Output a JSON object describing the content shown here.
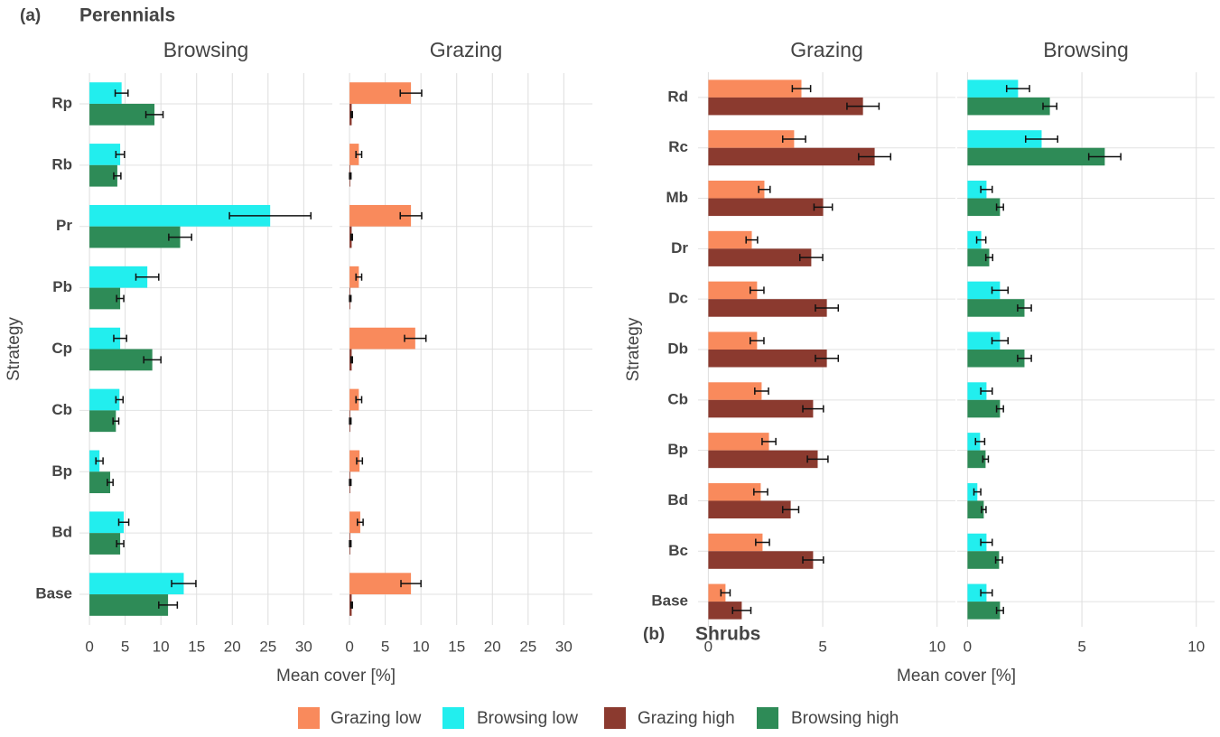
{
  "chart_data": [
    {
      "type": "hbar",
      "panel_label": "(a)",
      "panel_title": "Perennials",
      "title": "Browsing",
      "xlabel": "Mean cover [%]",
      "ylabel": "Strategy",
      "categories": [
        "Rp",
        "Rb",
        "Pr",
        "Pb",
        "Cp",
        "Cb",
        "Bp",
        "Bd",
        "Base"
      ],
      "series": [
        {
          "name": "Browsing low",
          "color": "#22eeee",
          "values": [
            4.5,
            4.3,
            25.3,
            8.1,
            4.3,
            4.2,
            1.4,
            4.8,
            13.2
          ],
          "errors": [
            0.9,
            0.6,
            5.7,
            1.6,
            0.9,
            0.5,
            0.5,
            0.7,
            1.7
          ]
        },
        {
          "name": "Browsing high",
          "color": "#2e8b57",
          "values": [
            9.1,
            3.9,
            12.7,
            4.3,
            8.8,
            3.7,
            2.9,
            4.3,
            11.0
          ],
          "errors": [
            1.2,
            0.5,
            1.6,
            0.5,
            1.2,
            0.4,
            0.4,
            0.5,
            1.3
          ]
        }
      ],
      "xlim": [
        -1.4,
        34
      ],
      "xticks": [
        0,
        5,
        10,
        15,
        20,
        25,
        30
      ],
      "grid": true
    },
    {
      "type": "hbar",
      "title": "Grazing",
      "categories": [
        "Rp",
        "Rb",
        "Pr",
        "Pb",
        "Cp",
        "Cb",
        "Bp",
        "Bd",
        "Base"
      ],
      "series": [
        {
          "name": "Grazing low",
          "color": "#f98a5c",
          "values": [
            8.6,
            1.3,
            8.6,
            1.3,
            9.2,
            1.3,
            1.4,
            1.5,
            8.6
          ],
          "errors": [
            1.5,
            0.4,
            1.5,
            0.4,
            1.5,
            0.4,
            0.4,
            0.4,
            1.4
          ]
        },
        {
          "name": "Grazing high",
          "color": "#8b3a2f",
          "values": [
            0.3,
            0.1,
            0.3,
            0.1,
            0.3,
            0.1,
            0.1,
            0.1,
            0.3
          ],
          "errors": [
            0.1,
            0.1,
            0.1,
            0.1,
            0.1,
            0.1,
            0.1,
            0.1,
            0.1
          ]
        }
      ],
      "xlim": [
        -1.4,
        34
      ],
      "xticks": [
        0,
        5,
        10,
        15,
        20,
        25,
        30
      ],
      "grid": true
    },
    {
      "type": "hbar",
      "panel_label": "(b)",
      "panel_title": "Shrubs",
      "title": "Grazing",
      "xlabel": "Mean cover [%]",
      "ylabel": "Strategy",
      "categories": [
        "Rd",
        "Rc",
        "Mb",
        "Dr",
        "Dc",
        "Db",
        "Cb",
        "Bp",
        "Bd",
        "Bc",
        "Base"
      ],
      "series": [
        {
          "name": "Grazing low",
          "color": "#f98a5c",
          "values": [
            4.07,
            3.75,
            2.45,
            1.9,
            2.13,
            2.13,
            2.33,
            2.65,
            2.29,
            2.37,
            0.75
          ],
          "errors": [
            0.4,
            0.5,
            0.25,
            0.25,
            0.3,
            0.3,
            0.3,
            0.3,
            0.3,
            0.3,
            0.2
          ]
        },
        {
          "name": "Grazing high",
          "color": "#8b3a2f",
          "values": [
            6.76,
            7.27,
            5.02,
            4.5,
            5.18,
            5.18,
            4.58,
            4.78,
            3.6,
            4.58,
            1.46
          ],
          "errors": [
            0.7,
            0.7,
            0.4,
            0.5,
            0.5,
            0.5,
            0.45,
            0.45,
            0.35,
            0.45,
            0.4
          ]
        }
      ],
      "xlim": [
        -0.45,
        10.8
      ],
      "xticks": [
        0,
        5,
        10
      ],
      "grid": true
    },
    {
      "type": "hbar",
      "title": "Browsing",
      "categories": [
        "Rd",
        "Rc",
        "Mb",
        "Dr",
        "Dc",
        "Db",
        "Cb",
        "Bp",
        "Bd",
        "Bc",
        "Base"
      ],
      "series": [
        {
          "name": "Browsing low",
          "color": "#22eeee",
          "values": [
            2.21,
            3.24,
            0.83,
            0.6,
            1.42,
            1.42,
            0.83,
            0.55,
            0.43,
            0.83,
            0.83
          ],
          "errors": [
            0.5,
            0.7,
            0.25,
            0.2,
            0.35,
            0.35,
            0.25,
            0.2,
            0.15,
            0.25,
            0.25
          ]
        },
        {
          "name": "Browsing high",
          "color": "#2e8b57",
          "values": [
            3.6,
            6.0,
            1.42,
            0.95,
            2.49,
            2.49,
            1.42,
            0.79,
            0.71,
            1.38,
            1.42
          ],
          "errors": [
            0.3,
            0.7,
            0.15,
            0.15,
            0.3,
            0.3,
            0.15,
            0.12,
            0.1,
            0.15,
            0.15
          ]
        }
      ],
      "xlim": [
        -0.45,
        10.8
      ],
      "xticks": [
        0,
        5,
        10
      ],
      "grid": true
    }
  ]
}
